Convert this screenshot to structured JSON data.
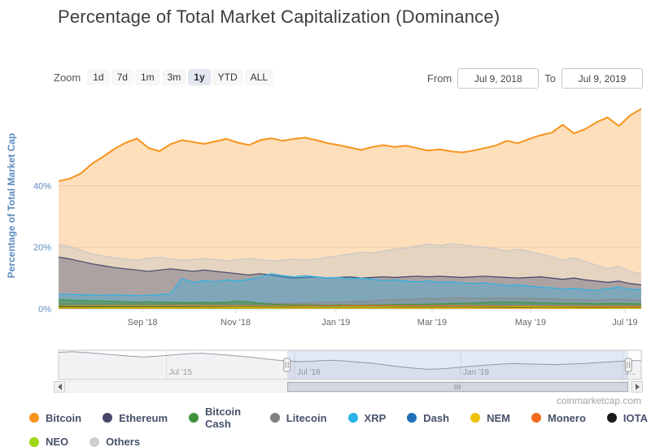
{
  "title": "Percentage of Total Market Capitalization (Dominance)",
  "watermark": "coinmarketcap.com",
  "toolbar": {
    "zoom_label": "Zoom",
    "buttons": [
      {
        "label": "1d",
        "selected": false
      },
      {
        "label": "7d",
        "selected": false
      },
      {
        "label": "1m",
        "selected": false
      },
      {
        "label": "3m",
        "selected": false
      },
      {
        "label": "1y",
        "selected": true
      },
      {
        "label": "YTD",
        "selected": false
      },
      {
        "label": "ALL",
        "selected": false
      }
    ],
    "from_label": "From",
    "from_value": "Jul 9, 2018",
    "to_label": "To",
    "to_value": "Jul 9, 2019"
  },
  "chart_data": {
    "type": "area",
    "title": "Percentage of Total Market Capitalization (Dominance)",
    "xlabel": "",
    "ylabel": "Percentage of Total Market Cap",
    "ylim": [
      0,
      66
    ],
    "x_range": [
      "Jul 9, 2018",
      "Jul 9, 2019"
    ],
    "grid": "horizontal",
    "legend_position": "bottom",
    "yticks": [
      {
        "value": 0,
        "label": "0%"
      },
      {
        "value": 20,
        "label": "20%"
      },
      {
        "value": 40,
        "label": "40%"
      }
    ],
    "xticks": [
      {
        "pos": 0.144,
        "label": "Sep '18"
      },
      {
        "pos": 0.304,
        "label": "Nov '18"
      },
      {
        "pos": 0.476,
        "label": "Jan '19"
      },
      {
        "pos": 0.641,
        "label": "Mar '19"
      },
      {
        "pos": 0.81,
        "label": "May '19"
      },
      {
        "pos": 0.972,
        "label": "Jul '19"
      }
    ],
    "series": [
      {
        "name": "Bitcoin",
        "color": "#f7941d",
        "fill": "rgba(247,148,29,0.30)",
        "values": [
          41.5,
          42.3,
          44.0,
          47.2,
          49.5,
          52.0,
          54.0,
          55.3,
          52.3,
          51.2,
          53.5,
          54.8,
          54.2,
          53.6,
          54.4,
          55.2,
          54.0,
          53.2,
          54.8,
          55.4,
          54.6,
          55.2,
          55.6,
          54.8,
          53.8,
          53.2,
          52.4,
          51.6,
          52.6,
          53.2,
          52.6,
          53.0,
          52.2,
          51.4,
          51.8,
          51.2,
          50.8,
          51.4,
          52.2,
          53.0,
          54.6,
          53.8,
          55.2,
          56.4,
          57.2,
          59.8,
          57.0,
          58.4,
          60.6,
          62.2,
          59.4,
          62.8,
          65.0
        ]
      },
      {
        "name": "Others",
        "color": "#c9c9c9",
        "fill": "rgba(200,200,200,0.45)",
        "values": [
          21.0,
          20.2,
          19.0,
          17.8,
          17.2,
          16.6,
          16.2,
          15.8,
          16.4,
          16.8,
          16.2,
          15.8,
          16.0,
          16.4,
          16.0,
          15.6,
          16.0,
          16.4,
          16.0,
          15.6,
          15.8,
          16.2,
          15.8,
          16.2,
          16.8,
          17.2,
          17.8,
          18.4,
          18.2,
          18.8,
          19.4,
          19.8,
          20.4,
          21.0,
          20.6,
          21.2,
          20.8,
          20.4,
          20.0,
          19.6,
          18.8,
          19.4,
          18.6,
          17.8,
          17.0,
          15.8,
          16.6,
          15.4,
          14.2,
          13.0,
          13.8,
          12.2,
          11.4
        ]
      },
      {
        "name": "Ethereum",
        "color": "#45456b",
        "fill": "rgba(69,69,107,0.35)",
        "values": [
          16.8,
          16.2,
          15.4,
          14.6,
          14.0,
          13.4,
          13.0,
          12.6,
          12.2,
          12.6,
          13.0,
          12.6,
          12.2,
          12.6,
          12.2,
          11.8,
          11.4,
          11.0,
          11.4,
          11.0,
          10.4,
          10.0,
          10.2,
          10.4,
          10.0,
          10.2,
          10.4,
          10.0,
          10.2,
          10.4,
          10.2,
          10.4,
          10.6,
          10.4,
          10.6,
          10.4,
          10.2,
          10.4,
          10.6,
          10.4,
          10.2,
          10.0,
          10.2,
          10.4,
          10.0,
          9.6,
          10.0,
          9.4,
          9.0,
          8.6,
          9.0,
          8.2,
          7.8
        ]
      },
      {
        "name": "XRP",
        "color": "#2bb3e6",
        "fill": "rgba(43,179,230,0.35)",
        "values": [
          4.8,
          4.7,
          4.6,
          4.5,
          4.4,
          4.5,
          4.4,
          4.3,
          4.4,
          4.6,
          5.0,
          9.8,
          8.6,
          9.2,
          8.8,
          9.4,
          9.0,
          9.6,
          10.4,
          11.4,
          10.8,
          10.4,
          10.8,
          10.4,
          10.0,
          10.2,
          9.8,
          10.0,
          9.6,
          9.2,
          9.4,
          9.0,
          8.8,
          9.0,
          8.6,
          8.8,
          8.4,
          8.2,
          8.4,
          8.0,
          7.6,
          7.8,
          7.4,
          7.0,
          6.8,
          6.4,
          6.6,
          6.2,
          6.0,
          6.6,
          7.0,
          6.4,
          6.2
        ]
      },
      {
        "name": "Litecoin",
        "color": "#8a8a8a",
        "fill": "rgba(138,138,138,0.40)",
        "values": [
          1.9,
          1.8,
          1.8,
          1.7,
          1.7,
          1.6,
          1.6,
          1.7,
          1.7,
          1.6,
          1.6,
          1.7,
          1.8,
          1.7,
          1.7,
          1.8,
          1.8,
          1.7,
          1.8,
          1.9,
          1.8,
          1.8,
          1.9,
          2.0,
          2.1,
          2.2,
          2.3,
          2.4,
          2.6,
          2.8,
          3.0,
          3.1,
          3.2,
          3.4,
          3.3,
          3.5,
          3.6,
          3.5,
          3.4,
          3.5,
          3.6,
          3.4,
          3.5,
          3.3,
          3.2,
          3.0,
          3.1,
          2.9,
          2.8,
          3.0,
          3.1,
          2.9,
          2.8
        ]
      },
      {
        "name": "Bitcoin Cash",
        "color": "#3f9340",
        "fill": "rgba(63,147,64,0.45)",
        "values": [
          2.9,
          2.8,
          2.7,
          2.6,
          2.5,
          2.4,
          2.3,
          2.2,
          2.3,
          2.2,
          2.1,
          2.0,
          2.0,
          2.1,
          2.0,
          2.2,
          2.5,
          2.3,
          1.8,
          1.5,
          1.4,
          1.3,
          1.3,
          1.2,
          1.2,
          1.3,
          1.2,
          1.2,
          1.3,
          1.3,
          1.4,
          1.4,
          1.5,
          1.5,
          1.6,
          1.7,
          1.8,
          1.9,
          2.0,
          2.1,
          2.2,
          2.1,
          2.0,
          1.9,
          1.9,
          1.8,
          1.8,
          1.7,
          1.6,
          1.7,
          1.7,
          1.6,
          1.6
        ]
      },
      {
        "name": "Monero",
        "color": "#f26b21",
        "fill": "rgba(242,107,33,0.50)",
        "values": [
          1.1,
          1.05,
          1.0,
          1.05,
          1.0,
          0.95,
          1.0,
          1.05,
          1.0,
          0.95,
          0.9,
          0.9,
          0.85,
          0.8
        ]
      },
      {
        "name": "Dash",
        "color": "#1f6fb5",
        "fill": "rgba(31,111,181,0.50)",
        "values": [
          1.0,
          0.9,
          0.85,
          0.8,
          0.75,
          0.7,
          0.65,
          0.65,
          0.6,
          0.6,
          0.55,
          0.55,
          0.5,
          0.45
        ]
      },
      {
        "name": "NEO",
        "color": "#9ed615",
        "fill": "rgba(158,214,21,0.50)",
        "values": [
          0.9,
          0.85,
          0.8,
          0.75,
          0.7,
          0.65,
          0.6,
          0.65,
          0.6,
          0.55,
          0.6,
          0.55,
          0.5,
          0.45
        ]
      },
      {
        "name": "IOTA",
        "color": "#1a1a1a",
        "fill": "rgba(30,30,30,0.50)",
        "values": [
          0.65,
          0.6,
          0.55,
          0.5,
          0.45,
          0.45,
          0.4,
          0.4,
          0.45,
          0.4,
          0.4,
          0.35,
          0.35,
          0.3
        ]
      },
      {
        "name": "NEM",
        "color": "#f0c20c",
        "fill": "rgba(240,194,12,0.60)",
        "values": [
          0.45,
          0.4,
          0.4,
          0.35,
          0.35,
          0.3,
          0.3,
          0.3,
          0.3,
          0.3,
          0.25,
          0.25,
          0.2,
          0.2
        ]
      }
    ],
    "navigator": {
      "ylim": [
        0,
        100
      ],
      "values": [
        93,
        95,
        92,
        88,
        84,
        80,
        77,
        80,
        84,
        88,
        90,
        87,
        83,
        79,
        74,
        68,
        64,
        61,
        63,
        66,
        64,
        60,
        56,
        50,
        44,
        39,
        35,
        37,
        41,
        45,
        49,
        52,
        55,
        53,
        52,
        51,
        53,
        55,
        58,
        61,
        64,
        65
      ],
      "selection": [
        0.392,
        0.978
      ],
      "labels": [
        {
          "pos": 0.185,
          "label": "Jul '15"
        },
        {
          "pos": 0.405,
          "label": "Jul '18"
        },
        {
          "pos": 0.69,
          "label": "Jan '19"
        },
        {
          "pos": 0.968,
          "label": "J..."
        }
      ]
    }
  },
  "legend": {
    "rows": [
      [
        {
          "label": "Bitcoin",
          "color": "#f7941d"
        },
        {
          "label": "Ethereum",
          "color": "#47476b"
        },
        {
          "label": "Bitcoin Cash",
          "color": "#3f9340"
        },
        {
          "label": "Litecoin",
          "color": "#808080"
        },
        {
          "label": "XRP",
          "color": "#2bb3e6"
        },
        {
          "label": "Dash",
          "color": "#1f6fb5"
        },
        {
          "label": "NEM",
          "color": "#f0c20c"
        },
        {
          "label": "Monero",
          "color": "#f26b21"
        },
        {
          "label": "IOTA",
          "color": "#1a1a1a"
        }
      ],
      [
        {
          "label": "NEO",
          "color": "#9ed615"
        },
        {
          "label": "Others",
          "color": "#cfcfcf"
        }
      ]
    ]
  }
}
